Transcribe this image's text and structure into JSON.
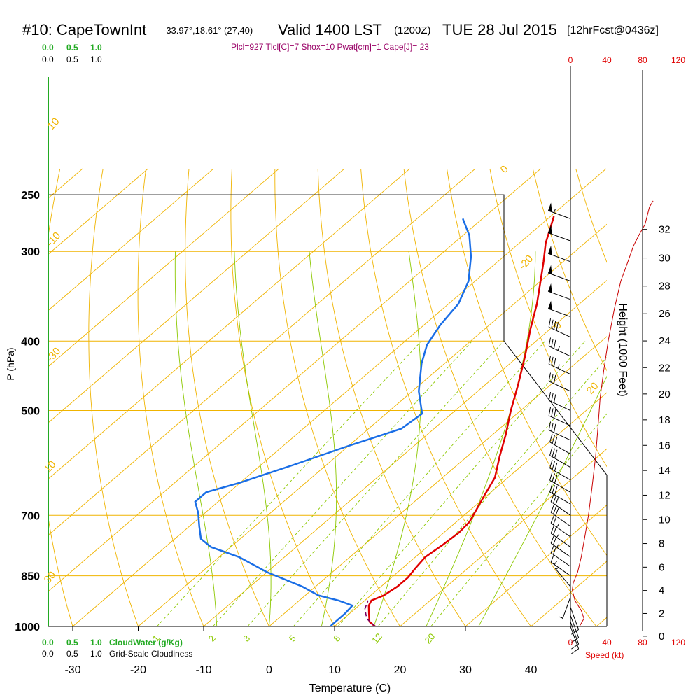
{
  "header": {
    "station": "#10: CapeTownInt",
    "location": "-33.97°,18.61° (27,40)",
    "valid": "Valid 1400 LST",
    "zulu": "(1200Z)",
    "date": "TUE 28 Jul 2015",
    "forecast": "[12hrFcst@0436z]",
    "indices": "Plcl=927 Tlcl[C]=7 Shox=10 Pwat[cm]=1 Cape[J]= 23"
  },
  "scales": {
    "cloudwater_ticks": [
      "0.0",
      "0.5",
      "1.0"
    ],
    "cloudiness_ticks": [
      "0.0",
      "0.5",
      "1.0"
    ],
    "cloudwater_label": "CloudWater (g/Kg)",
    "cloudiness_label": "Grid-Scale Cloudiness",
    "speed_ticks": [
      "0",
      "40",
      "80",
      "120"
    ],
    "speed_label": "Speed (kt)"
  },
  "colors": {
    "isotherm": "#f0b400",
    "dry_adiabat": "#f0b400",
    "moist_adiabat": "#8cc800",
    "mixing_ratio": "#8cc800",
    "temperature": "#e00000",
    "dewpoint": "#1a6ee6",
    "parcel": "#7a0060",
    "speed": "#c80000",
    "cloudwater": "#22aa22",
    "indices": "#990066"
  },
  "chart_data": {
    "type": "line",
    "title": "#10: CapeTownInt  Valid 1400 LST (1200Z) TUE 28 Jul 2015 [12hrFcst@0436z]",
    "xlabel": "Temperature (C)",
    "ylabel": "P (hPa)",
    "y2label": "Height (1000 Feet)",
    "x_ticks": [
      -30,
      -20,
      -10,
      0,
      10,
      20,
      30,
      40
    ],
    "y_ticks": [
      250,
      300,
      400,
      500,
      700,
      850,
      1000
    ],
    "height_ticks": [
      0,
      2,
      4,
      6,
      8,
      10,
      12,
      14,
      16,
      18,
      20,
      22,
      24,
      26,
      28,
      30,
      32
    ],
    "mixing_ratio_labels": [
      "1",
      "2",
      "3",
      "5",
      "8",
      "12",
      "20"
    ],
    "mixing_ratio_values": [
      1,
      2,
      3,
      5,
      8,
      12,
      20
    ],
    "dry_adiabat_labels": [
      "10",
      "0",
      "-10",
      "-20",
      "-30",
      "0",
      "10",
      "20",
      "30"
    ],
    "series": [
      {
        "name": "Temperature",
        "points": [
          [
            16.2,
            1000
          ],
          [
            14.5,
            985
          ],
          [
            13,
            960
          ],
          [
            11.5,
            935
          ],
          [
            11,
            920
          ],
          [
            12,
            905
          ],
          [
            12.5,
            880
          ],
          [
            12.5,
            855
          ],
          [
            12,
            830
          ],
          [
            11.5,
            800
          ],
          [
            12,
            770
          ],
          [
            12.3,
            740
          ],
          [
            12,
            715
          ],
          [
            11,
            690
          ],
          [
            9.5,
            655
          ],
          [
            8,
            620
          ],
          [
            5,
            580
          ],
          [
            2,
            540
          ],
          [
            -1.5,
            500
          ],
          [
            -5,
            460
          ],
          [
            -9,
            420
          ],
          [
            -13,
            385
          ],
          [
            -16.5,
            355
          ],
          [
            -20,
            330
          ],
          [
            -23,
            310
          ],
          [
            -26,
            292
          ],
          [
            -28,
            278
          ],
          [
            -29.5,
            268
          ]
        ]
      },
      {
        "name": "Dewpoint",
        "points": [
          [
            9.5,
            1005
          ],
          [
            9.3,
            995
          ],
          [
            9.3,
            960
          ],
          [
            9,
            935
          ],
          [
            6,
            920
          ],
          [
            2,
            905
          ],
          [
            -2,
            880
          ],
          [
            -10,
            840
          ],
          [
            -17,
            800
          ],
          [
            -23,
            775
          ],
          [
            -26,
            755
          ],
          [
            -28.5,
            725
          ],
          [
            -31,
            695
          ],
          [
            -33.5,
            670
          ],
          [
            -33.5,
            650
          ],
          [
            -30,
            630
          ],
          [
            -25,
            595
          ],
          [
            -20,
            560
          ],
          [
            -15,
            530
          ],
          [
            -14.5,
            505
          ],
          [
            -19,
            470
          ],
          [
            -23.5,
            430
          ],
          [
            -26,
            405
          ],
          [
            -27.5,
            380
          ],
          [
            -28.5,
            355
          ],
          [
            -31,
            330
          ],
          [
            -35,
            305
          ],
          [
            -39,
            285
          ],
          [
            -43,
            270
          ]
        ]
      },
      {
        "name": "Parcel",
        "points": [
          [
            16.2,
            1000
          ],
          [
            13.5,
            975
          ],
          [
            11.5,
            945
          ],
          [
            10.5,
            920
          ]
        ]
      }
    ],
    "surface_temperature": [
      16.2,
      1000
    ],
    "surface_dewpoint": [
      10.6,
      1000
    ],
    "wind_barbs": [
      {
        "p": 270,
        "speed": 55,
        "dir": 290
      },
      {
        "p": 290,
        "speed": 50,
        "dir": 290
      },
      {
        "p": 310,
        "speed": 50,
        "dir": 290
      },
      {
        "p": 330,
        "speed": 50,
        "dir": 290
      },
      {
        "p": 350,
        "speed": 50,
        "dir": 290
      },
      {
        "p": 370,
        "speed": 50,
        "dir": 290
      },
      {
        "p": 395,
        "speed": 40,
        "dir": 295
      },
      {
        "p": 420,
        "speed": 35,
        "dir": 295
      },
      {
        "p": 445,
        "speed": 35,
        "dir": 295
      },
      {
        "p": 470,
        "speed": 30,
        "dir": 295
      },
      {
        "p": 500,
        "speed": 30,
        "dir": 295
      },
      {
        "p": 525,
        "speed": 30,
        "dir": 295
      },
      {
        "p": 550,
        "speed": 30,
        "dir": 295
      },
      {
        "p": 575,
        "speed": 30,
        "dir": 300
      },
      {
        "p": 600,
        "speed": 30,
        "dir": 300
      },
      {
        "p": 625,
        "speed": 30,
        "dir": 300
      },
      {
        "p": 650,
        "speed": 30,
        "dir": 300
      },
      {
        "p": 675,
        "speed": 30,
        "dir": 300
      },
      {
        "p": 700,
        "speed": 30,
        "dir": 305
      },
      {
        "p": 725,
        "speed": 30,
        "dir": 305
      },
      {
        "p": 750,
        "speed": 25,
        "dir": 305
      },
      {
        "p": 775,
        "speed": 25,
        "dir": 305
      },
      {
        "p": 800,
        "speed": 25,
        "dir": 305
      },
      {
        "p": 825,
        "speed": 20,
        "dir": 305
      },
      {
        "p": 850,
        "speed": 15,
        "dir": 305
      },
      {
        "p": 880,
        "speed": 5,
        "dir": 320
      },
      {
        "p": 910,
        "speed": 5,
        "dir": 200
      },
      {
        "p": 940,
        "speed": 10,
        "dir": 160
      },
      {
        "p": 965,
        "speed": 10,
        "dir": 160
      },
      {
        "p": 985,
        "speed": 10,
        "dir": 160
      },
      {
        "p": 1000,
        "speed": 10,
        "dir": 160
      }
    ],
    "wind_speed_profile": [
      [
        10,
        1000
      ],
      [
        12,
        990
      ],
      [
        15,
        975
      ],
      [
        12,
        950
      ],
      [
        5,
        920
      ],
      [
        2,
        890
      ],
      [
        3,
        870
      ],
      [
        8,
        840
      ],
      [
        12,
        800
      ],
      [
        16,
        750
      ],
      [
        20,
        700
      ],
      [
        24,
        640
      ],
      [
        28,
        580
      ],
      [
        31,
        520
      ],
      [
        33,
        480
      ],
      [
        37,
        440
      ],
      [
        42,
        400
      ],
      [
        49,
        360
      ],
      [
        56,
        330
      ],
      [
        64,
        310
      ],
      [
        70,
        295
      ],
      [
        76,
        285
      ],
      [
        83,
        275
      ],
      [
        88,
        260
      ],
      [
        92,
        255
      ]
    ]
  }
}
